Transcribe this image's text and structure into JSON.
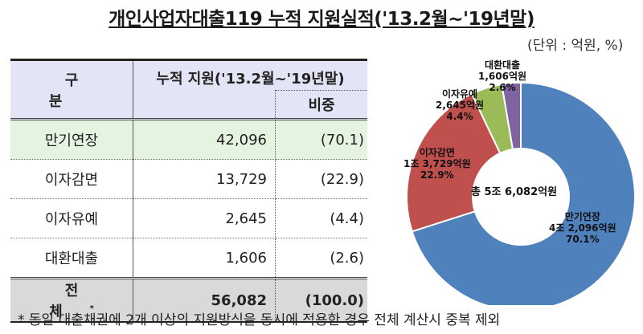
{
  "title": "개인사업자대출119 누적 지원실적('13.2월~'19년말)",
  "unit": "(단위 : 억원, %)",
  "table": {
    "header": {
      "category": "구 분",
      "cumulative": "누적 지원('13.2월~'19년말)",
      "share": "비중"
    },
    "rows": [
      {
        "category": "만기연장",
        "amount": "42,096",
        "share": "(70.1)"
      },
      {
        "category": "이자감면",
        "amount": "13,729",
        "share": "(22.9)"
      },
      {
        "category": "이자유예",
        "amount": "2,645",
        "share": "(4.4)"
      },
      {
        "category": "대환대출",
        "amount": "1,606",
        "share": "(2.6)"
      }
    ],
    "total": {
      "category": "전 체",
      "mark": "*",
      "amount": "56,082",
      "share": "(100.0)"
    }
  },
  "footnote": "* 동일 대출채권에 2개 이상의 지원방식을 동시에 적용한 경우 전체 계산시 중복 제외",
  "chart_data": {
    "type": "pie",
    "subtype": "donut",
    "title": "개인사업자대출119 누적 지원실적('13.2월~'19년말)",
    "center_label": "총 5조 6,082억원",
    "unit": "억원",
    "categories": [
      "만기연장",
      "이자감면",
      "이자유예",
      "대환대출"
    ],
    "values": [
      42096,
      13729,
      2645,
      1606
    ],
    "percentages": [
      70.1,
      22.9,
      4.4,
      2.6
    ],
    "value_labels": [
      "4조 2,096억원",
      "1조 3,729억원",
      "2,645억원",
      "1,606억원"
    ],
    "percent_labels": [
      "70.1%",
      "22.9%",
      "4.4%",
      "2.6%"
    ],
    "colors": [
      "#4f81bd",
      "#c0504d",
      "#9bbb59",
      "#8064a2"
    ],
    "total": 56082
  }
}
